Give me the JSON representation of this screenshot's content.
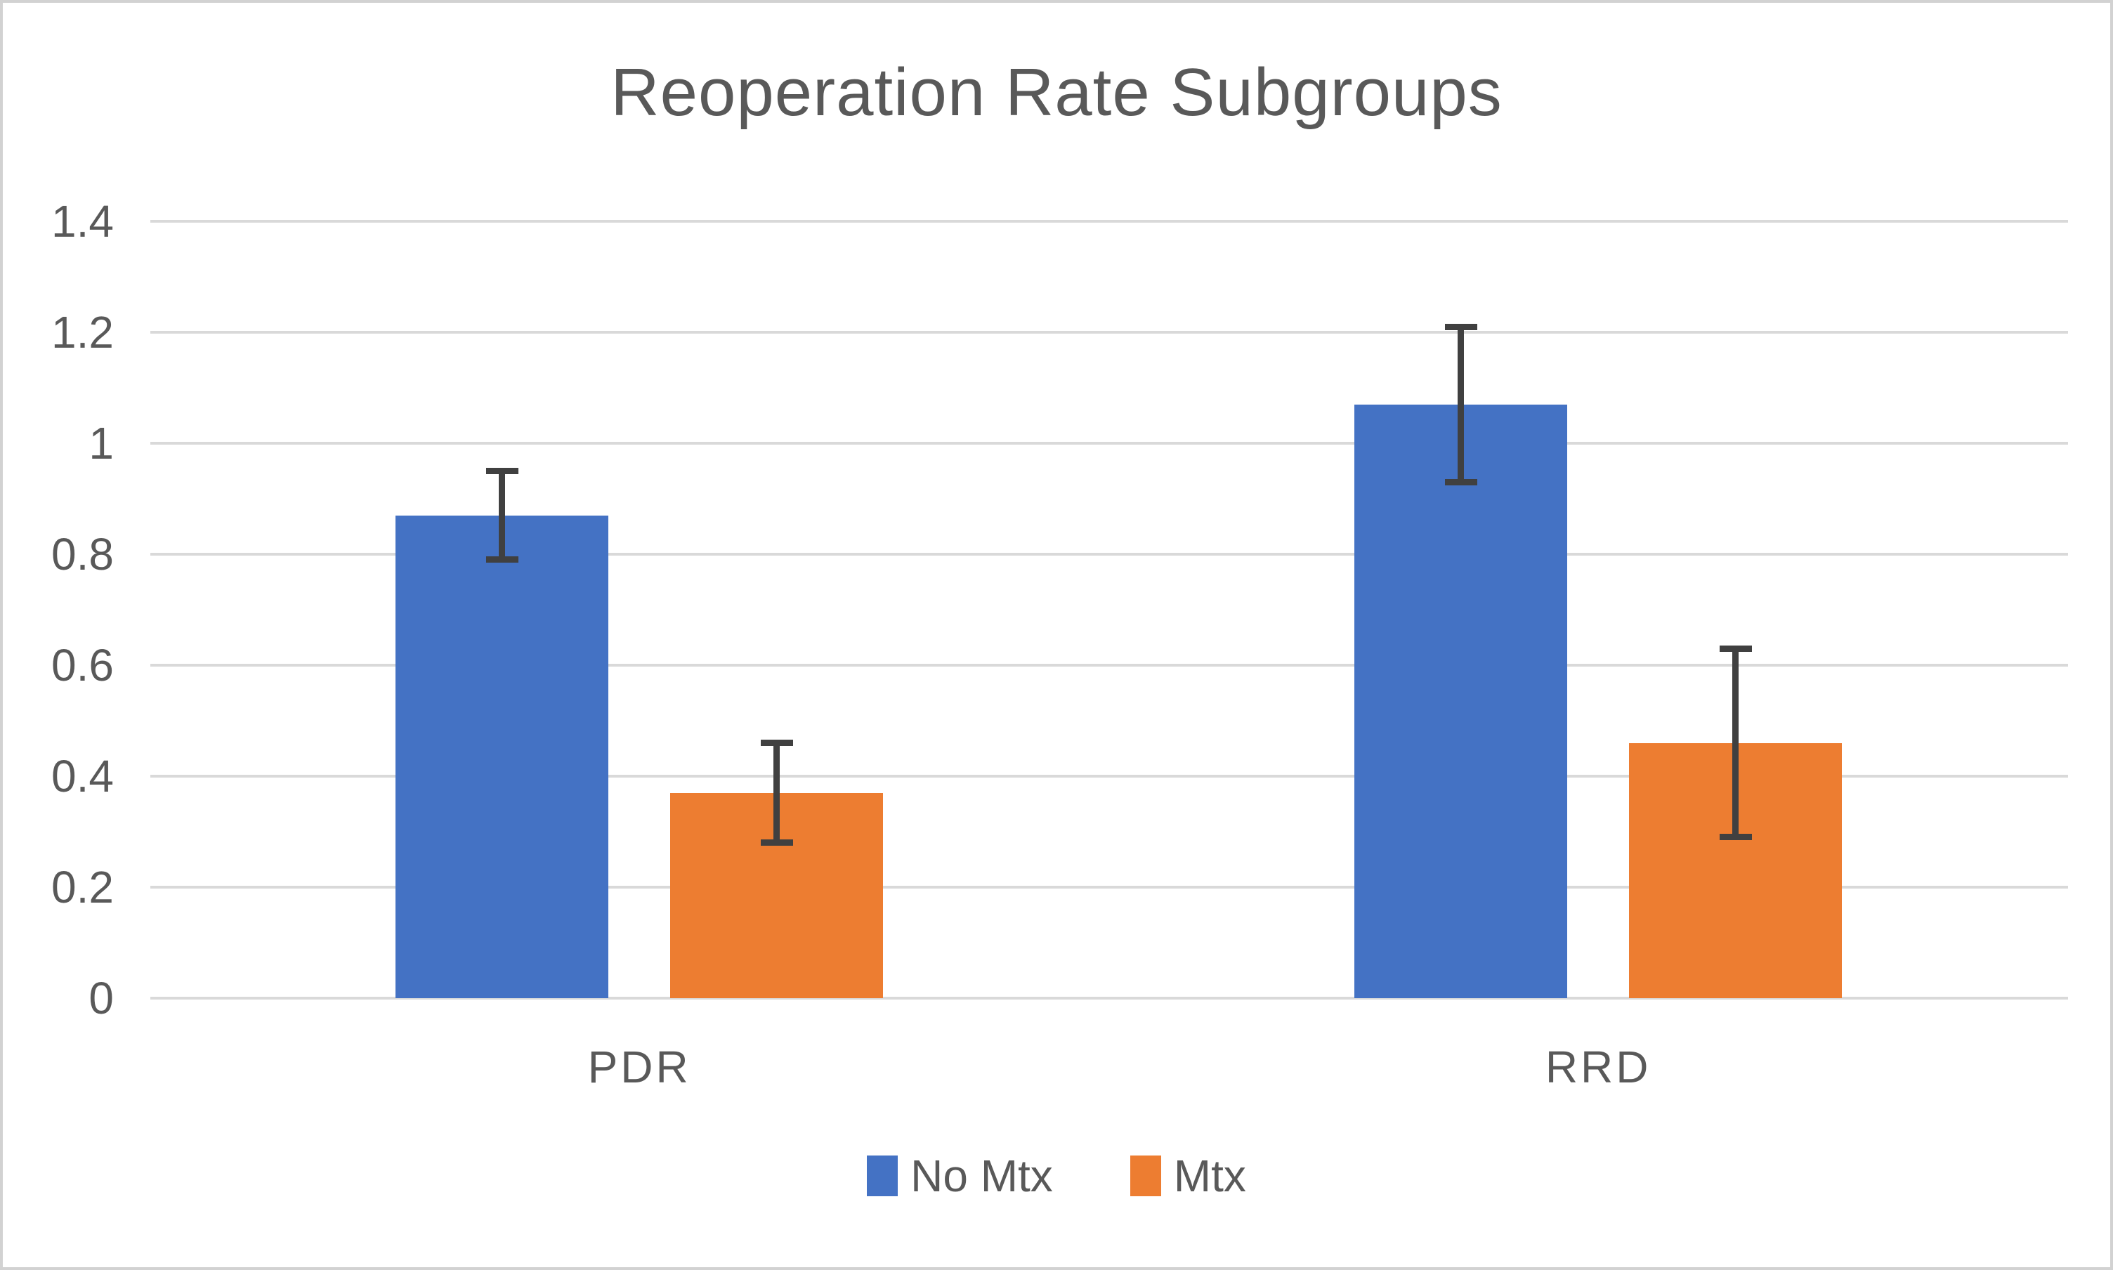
{
  "chart_data": {
    "type": "bar",
    "title": "Reoperation Rate Subgroups",
    "categories": [
      "PDR",
      "RRD"
    ],
    "series": [
      {
        "name": "No Mtx",
        "color": "#4472C4",
        "values": [
          0.87,
          1.07
        ],
        "error_low": [
          0.79,
          0.93
        ],
        "error_high": [
          0.95,
          1.21
        ]
      },
      {
        "name": "Mtx",
        "color": "#ED7D31",
        "values": [
          0.37,
          0.46
        ],
        "error_low": [
          0.28,
          0.29
        ],
        "error_high": [
          0.46,
          0.63
        ]
      }
    ],
    "xlabel": "",
    "ylabel": "",
    "ylim": [
      0,
      1.4
    ],
    "yticks": [
      {
        "value": 0,
        "label": "0"
      },
      {
        "value": 0.2,
        "label": "0.2"
      },
      {
        "value": 0.4,
        "label": "0.4"
      },
      {
        "value": 0.6,
        "label": "0.6"
      },
      {
        "value": 0.8,
        "label": "0.8"
      },
      {
        "value": 1,
        "label": "1"
      },
      {
        "value": 1.2,
        "label": "1.2"
      },
      {
        "value": 1.4,
        "label": "1.4"
      }
    ],
    "grid": true,
    "legend_position": "bottom",
    "error_bars": true
  },
  "styles": {
    "text_color": "#595959",
    "gridline_color": "#D9D9D9",
    "error_bar_color": "#404040",
    "background_color": "#FFFFFF",
    "border_color": "#D2D2D2"
  }
}
